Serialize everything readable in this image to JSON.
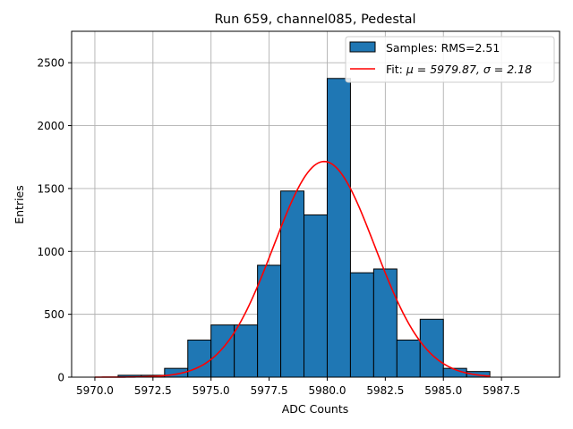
{
  "chart_data": {
    "type": "bar",
    "title": "Run 659, channel085, Pedestal",
    "xlabel": "ADC Counts",
    "ylabel": "Entries",
    "xlim": [
      5969.0,
      5990.0
    ],
    "ylim": [
      0,
      2750
    ],
    "grid": true,
    "legend_position": "top-right",
    "xticks": [
      5970.0,
      5972.5,
      5975.0,
      5977.5,
      5980.0,
      5982.5,
      5985.0,
      5987.5
    ],
    "xtick_labels": [
      "5970.0",
      "5972.5",
      "5975.0",
      "5977.5",
      "5980.0",
      "5982.5",
      "5985.0",
      "5987.5"
    ],
    "yticks": [
      0,
      500,
      1000,
      1500,
      2000,
      2500
    ],
    "ytick_labels": [
      "0",
      "500",
      "1000",
      "1500",
      "2000",
      "2500"
    ],
    "histogram": {
      "name": "Samples: RMS=2.51",
      "color": "#1f77b4",
      "bin_edges": [
        5971,
        5972,
        5973,
        5974,
        5975,
        5976,
        5977,
        5978,
        5979,
        5980,
        5981,
        5982,
        5983,
        5984,
        5985,
        5986,
        5987
      ],
      "counts": [
        15,
        15,
        70,
        295,
        415,
        415,
        890,
        1480,
        1290,
        2375,
        830,
        860,
        295,
        460,
        70,
        45
      ]
    },
    "fit": {
      "name_prefix": "Fit: ",
      "name_math": "μ = 5979.87, σ = 2.18",
      "color": "#ff0000",
      "mu": 5979.87,
      "sigma": 2.18,
      "amplitude": 1715,
      "x_range": [
        5970,
        5987
      ]
    }
  }
}
